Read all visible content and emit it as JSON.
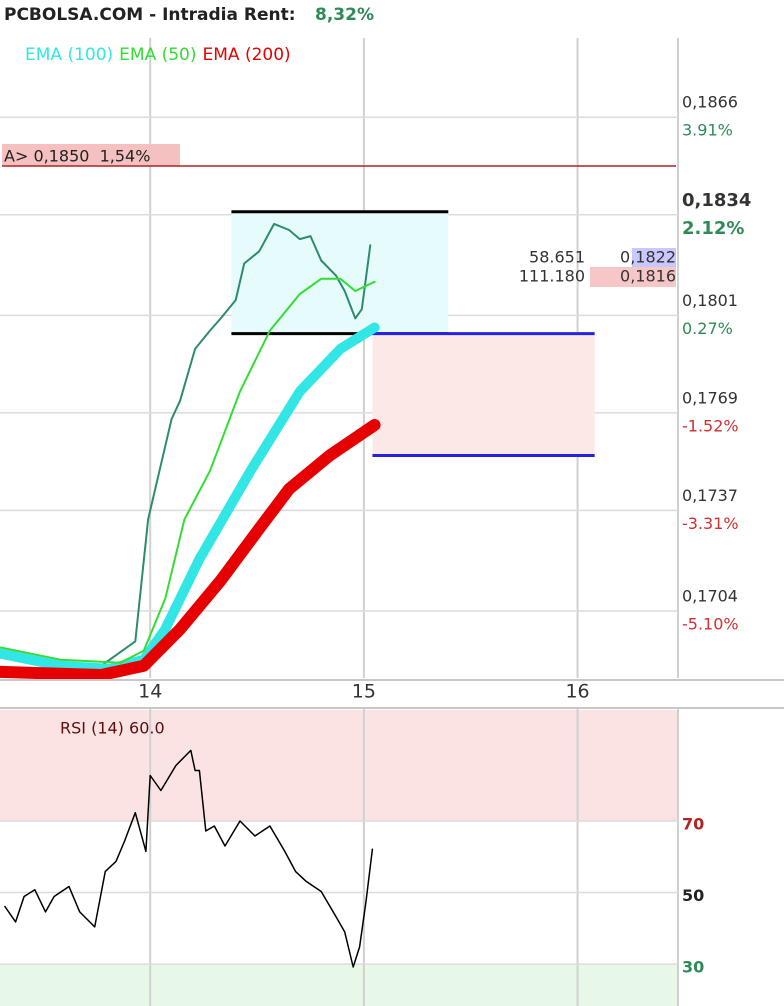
{
  "header": {
    "title": "PCBOLSA.COM - Intradia  Rent:",
    "return": "8,32%"
  },
  "chart_data": [
    {
      "type": "line",
      "xlim": [
        13.297,
        16.47
      ],
      "xticks": [
        14,
        15,
        16
      ],
      "ylim": [
        0.1682,
        0.1892
      ],
      "yticks": [
        {
          "value": 0.1866,
          "label": "0,1866"
        },
        {
          "value": 0.1834,
          "label": "0,1834"
        },
        {
          "value": 0.1801,
          "label": "0,1801"
        },
        {
          "value": 0.1769,
          "label": "0,1769"
        },
        {
          "value": 0.1737,
          "label": "0,1737"
        },
        {
          "value": 0.1704,
          "label": "0,1704"
        }
      ],
      "ytick_changes": [
        "3.91%",
        "2.12%",
        "0.27%",
        "-1.52%",
        "-3.31%",
        "-5.10%"
      ],
      "grid": true,
      "alert": {
        "value": 0.185,
        "label": "A> 0,1850  1,54%",
        "color": "#b22222"
      },
      "rectangles": [
        {
          "x": [
            14.38,
            15.395
          ],
          "y": [
            0.1795,
            0.1835
          ],
          "fill": "#e6fbfb",
          "edge": "#000000"
        },
        {
          "x": [
            15.04,
            16.08
          ],
          "y": [
            0.1755,
            0.1795
          ],
          "fill": "#fde8e8",
          "edge": "#2323e0"
        }
      ],
      "book": [
        {
          "volume": "58.651",
          "price": "0,1822",
          "color": "#c8c8ff"
        },
        {
          "volume": "111.180",
          "price": "0,1816",
          "color": "#f7c6c6"
        }
      ],
      "series": [
        {
          "color": "#2e8b6e",
          "width": 2,
          "x": [
            13.32,
            13.48,
            13.77,
            13.93,
            13.99,
            14.05,
            14.1,
            14.14,
            14.21,
            14.28,
            14.33,
            14.4,
            14.44,
            14.51,
            14.58,
            14.65,
            14.7,
            14.75,
            14.8,
            14.87,
            14.91,
            14.96,
            14.99,
            15.03
          ],
          "values": [
            0.1691,
            0.1688,
            0.1686,
            0.1694,
            0.1734,
            0.1752,
            0.1767,
            0.1773,
            0.179,
            0.1796,
            0.18,
            0.1806,
            0.1818,
            0.1822,
            0.1831,
            0.1829,
            0.1826,
            0.1827,
            0.1819,
            0.1814,
            0.1809,
            0.18,
            0.1803,
            0.1824
          ]
        },
        {
          "name": "EMA (100)",
          "color": "#33e6e6",
          "width": 10,
          "x": [
            13.3,
            13.58,
            13.81,
            13.97,
            14.07,
            14.23,
            14.47,
            14.7,
            14.89,
            15.05
          ],
          "values": [
            0.169,
            0.1686,
            0.1685,
            0.1688,
            0.1698,
            0.1721,
            0.175,
            0.1776,
            0.179,
            0.1797
          ]
        },
        {
          "name": "EMA (50)",
          "color": "#33dd33",
          "width": 2,
          "x": [
            13.3,
            13.58,
            13.86,
            13.97,
            14.07,
            14.16,
            14.28,
            14.42,
            14.56,
            14.7,
            14.8,
            14.89,
            14.96,
            15.05
          ],
          "values": [
            0.1692,
            0.1688,
            0.1687,
            0.1691,
            0.1708,
            0.1734,
            0.175,
            0.1776,
            0.1796,
            0.1808,
            0.1813,
            0.1813,
            0.1809,
            0.1812
          ]
        },
        {
          "name": "EMA (200)",
          "color": "#e60000",
          "width": 12,
          "x": [
            13.3,
            13.77,
            13.97,
            14.14,
            14.33,
            14.51,
            14.65,
            14.84,
            15.05
          ],
          "values": [
            0.1684,
            0.1683,
            0.1686,
            0.1698,
            0.1714,
            0.1731,
            0.1744,
            0.1755,
            0.1765
          ]
        }
      ]
    },
    {
      "type": "line",
      "title": "RSI (14) 60.0",
      "xlim": [
        13.297,
        16.47
      ],
      "xticks": [
        14,
        15,
        16
      ],
      "ylim": [
        18.3,
        101
      ],
      "yticks": [
        70,
        50,
        30
      ],
      "ytick_colors": [
        "#b22222",
        "#222222",
        "#2e8b57"
      ],
      "bands": [
        {
          "y": [
            70,
            101
          ],
          "color": "#fbe3e3"
        },
        {
          "y": [
            18.3,
            30
          ],
          "color": "#e8f8e8"
        }
      ],
      "series": [
        {
          "color": "#000000",
          "width": 1.5,
          "x": [
            13.32,
            13.37,
            13.41,
            13.46,
            13.51,
            13.55,
            13.62,
            13.67,
            13.74,
            13.79,
            13.84,
            13.88,
            13.93,
            13.98,
            14.0,
            14.05,
            14.12,
            14.19,
            14.21,
            14.23,
            14.26,
            14.3,
            14.35,
            14.42,
            14.49,
            14.56,
            14.63,
            14.68,
            14.73,
            14.8,
            14.87,
            14.91,
            14.95,
            14.98,
            15.01,
            15.04
          ],
          "values": [
            46.1,
            41.8,
            48.9,
            50.8,
            44.6,
            48.9,
            51.7,
            44.6,
            40.4,
            55.9,
            58.7,
            64.4,
            72.3,
            61.5,
            82.7,
            78.5,
            85.5,
            89.7,
            84.1,
            84.1,
            67.2,
            68.6,
            63.0,
            70.0,
            65.8,
            68.6,
            61.5,
            55.9,
            53.1,
            50.3,
            43.2,
            39.0,
            29.2,
            34.8,
            47.5,
            62.1
          ]
        }
      ]
    }
  ]
}
